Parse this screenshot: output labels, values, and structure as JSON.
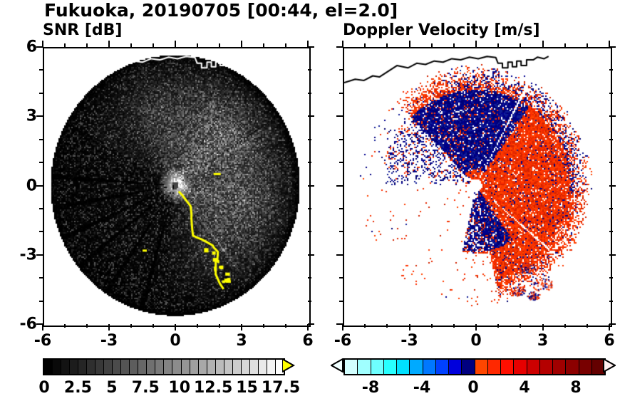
{
  "header": {
    "title": "Fukuoka, 20190705 [00:44, el=2.0]"
  },
  "left_panel": {
    "title": "SNR [dB]",
    "x_tick_labels": [
      "-6",
      "-3",
      "0",
      "3",
      "6"
    ],
    "y_tick_labels": [
      "6",
      "3",
      "0",
      "-3",
      "-6"
    ],
    "colorbar": {
      "tick_labels": [
        "0",
        "2.5",
        "5",
        "7.5",
        "10",
        "12.5",
        "15",
        "17.5"
      ],
      "tick_values": [
        0,
        2.5,
        5,
        7.5,
        10,
        12.5,
        15,
        17.5
      ],
      "min": 0,
      "max": 17.5,
      "segments": 28,
      "colormap": "grayscale",
      "over_arrow_color": "#ffff00"
    }
  },
  "right_panel": {
    "title": "Doppler Velocity [m/s]",
    "x_tick_labels": [
      "-6",
      "-3",
      "0",
      "3",
      "6"
    ],
    "colorbar": {
      "tick_labels": [
        "-8",
        "-4",
        "0",
        "4",
        "8"
      ],
      "tick_values": [
        -8,
        -4,
        0,
        4,
        8
      ],
      "min": -10,
      "max": 10,
      "block_colors": [
        "#d2ffff",
        "#a0ffff",
        "#6effff",
        "#28ffff",
        "#00e1ff",
        "#00aaff",
        "#0078ff",
        "#0041ff",
        "#0000dc",
        "#000080",
        "#ff4600",
        "#ff2800",
        "#ff0f00",
        "#e60000",
        "#cd0000",
        "#b40000",
        "#a00000",
        "#8c0000",
        "#780000",
        "#640000"
      ],
      "under_arrow_color": "#f0ffff",
      "over_arrow_color": "#fff0f0"
    }
  },
  "chart_data": {
    "type": "heatmap",
    "subtype": "radar_ppi_pair",
    "title": "Fukuoka, 20190705 [00:44, el=2.0]",
    "site": "Fukuoka",
    "date": "20190705",
    "time": "00:44",
    "elevation_deg": 2.0,
    "axes": {
      "xlim": [
        -6,
        6
      ],
      "ylim": [
        -6,
        6
      ],
      "major_ticks": [
        -6,
        -3,
        0,
        3,
        6
      ],
      "minor_tick_step": 1
    },
    "panels": [
      {
        "title": "SNR [dB]",
        "colormap": "grayscale",
        "scale_range": [
          0,
          17.5
        ],
        "scale_ticks": [
          0,
          2.5,
          5,
          7.5,
          10,
          12.5,
          15,
          17.5
        ],
        "over_color": "#ffff00",
        "features": [
          "dark circular echo disk of radius ~5.7 centered at origin",
          "bright speckled echo haze toward NE and E of center",
          "dark beam-blockage spokes radiating toward W and SW",
          "bright center spot with small dark dot at origin",
          "yellow saturated ground-clutter arc from near center toward SSE, about (0.2,-0.4) to (2.4,-4.3)",
          "small yellow echo near (1.8,0.5) and speck near (-1.5,-2.8)",
          "white coastline traced along the top near y=5.5 with rectangular notch near x=1..2.3"
        ]
      },
      {
        "title": "Doppler Velocity [m/s]",
        "scale_range": [
          -10,
          10
        ],
        "scale_ticks": [
          -8,
          -4,
          0,
          4,
          8
        ],
        "features": [
          "positive (red/orange) velocities covering E and SE sectors out to r~5",
          "negative (navy) patch N of center roughly -2<x<1, 1<y<4",
          "negative (navy) patch S of center near (0.5,-2)",
          "sparse navy speckle on W edge and along NE fringe",
          "white no-data wedges radiating toward W and SW",
          "scattered red/blue echo clusters near (2.5,-4)",
          "black coastline along the top near y=5.5"
        ]
      }
    ]
  }
}
